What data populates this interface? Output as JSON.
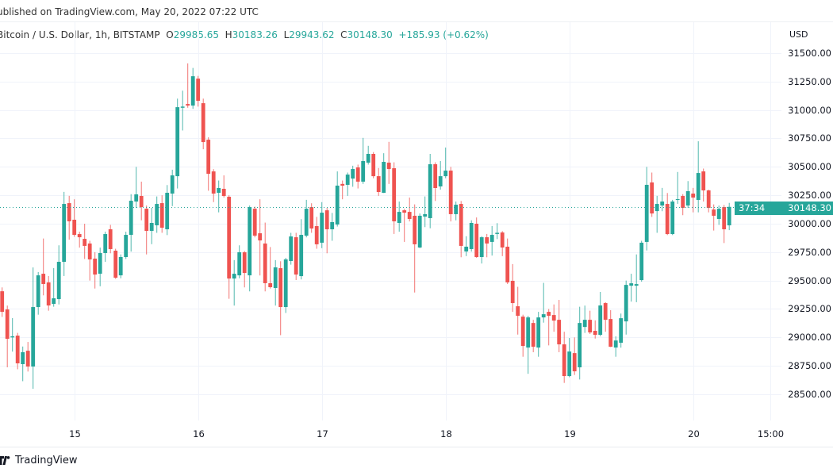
{
  "header": {
    "published": "ublished on TradingView.com, May 20, 2022 07:22 UTC",
    "symbol": "Bitcoin / U.S. Dollar, 1h, BITSTAMP",
    "o_label": "O",
    "o_value": "29985.65",
    "h_label": "H",
    "h_value": "30183.26",
    "l_label": "L",
    "l_value": "29943.62",
    "c_label": "C",
    "c_value": "30148.30",
    "change": "+185.93 (+0.62%)"
  },
  "footer": {
    "brand": "TradingView",
    "logo_icon": "tradingview-logo-icon"
  },
  "colors": {
    "up": "#26a69a",
    "down": "#ef5350",
    "grid": "#f0f3fa"
  },
  "chart_data": {
    "type": "candlestick",
    "title": "Bitcoin / U.S. Dollar, 1h, BITSTAMP",
    "currency_label": "USD",
    "ylim": [
      28300,
      31700
    ],
    "y_ticks": [
      "31500.00",
      "31250.00",
      "31000.00",
      "30750.00",
      "30500.00",
      "30250.00",
      "30000.00",
      "29750.00",
      "29500.00",
      "29250.00",
      "29000.00",
      "28750.00",
      "28500.00"
    ],
    "y_tick_values": [
      31500,
      31250,
      31000,
      30750,
      30500,
      30250,
      30000,
      29750,
      29500,
      29250,
      29000,
      28750,
      28500
    ],
    "x_ticks": [
      "15",
      "16",
      "17",
      "18",
      "19",
      "20",
      "15:00"
    ],
    "x_tick_hours": [
      14,
      38,
      62,
      86,
      110,
      134,
      149
    ],
    "last_price": "30148.30",
    "last_price_value": 30148.3,
    "countdown": "37:34",
    "ohlc": [
      [
        29406,
        29440,
        29180,
        29225
      ],
      [
        29246,
        29280,
        28737,
        28988
      ],
      [
        29000,
        29170,
        28875,
        29010
      ],
      [
        29016,
        29040,
        28720,
        28772
      ],
      [
        28765,
        28920,
        28615,
        28870
      ],
      [
        28883,
        28960,
        28700,
        28744
      ],
      [
        28744,
        29615,
        28548,
        29267
      ],
      [
        29267,
        29575,
        29200,
        29546
      ],
      [
        29560,
        29870,
        29370,
        29470
      ],
      [
        29484,
        29540,
        29235,
        29281
      ],
      [
        29295,
        29610,
        29270,
        29344
      ],
      [
        29337,
        29810,
        29290,
        29665
      ],
      [
        29665,
        30280,
        29540,
        30174
      ],
      [
        30181,
        30245,
        29860,
        30021
      ],
      [
        30035,
        30215,
        29885,
        29902
      ],
      [
        29909,
        29930,
        29790,
        29881
      ],
      [
        29867,
        30000,
        29690,
        29805
      ],
      [
        29826,
        29850,
        29500,
        29686
      ],
      [
        29693,
        29750,
        29430,
        29553
      ],
      [
        29560,
        29790,
        29450,
        29742
      ],
      [
        29742,
        29930,
        29665,
        29909
      ],
      [
        29951,
        29990,
        29740,
        29777
      ],
      [
        29763,
        29780,
        29515,
        29525
      ],
      [
        29546,
        29730,
        29520,
        29707
      ],
      [
        29707,
        29930,
        29690,
        29902
      ],
      [
        29902,
        30260,
        29755,
        30202
      ],
      [
        30195,
        30500,
        30140,
        30258
      ],
      [
        30244,
        30370,
        30030,
        30146
      ],
      [
        30132,
        30160,
        29730,
        29937
      ],
      [
        29937,
        30140,
        29820,
        30007
      ],
      [
        29986,
        30240,
        29920,
        30174
      ],
      [
        30181,
        30250,
        29920,
        29965
      ],
      [
        29951,
        30340,
        29900,
        30272
      ],
      [
        30265,
        30475,
        30155,
        30425
      ],
      [
        30418,
        31100,
        30310,
        31025
      ],
      [
        31020,
        31170,
        30820,
        31030
      ],
      [
        31053,
        31410,
        31020,
        31039
      ],
      [
        31039,
        31370,
        31010,
        31297
      ],
      [
        31276,
        31300,
        31030,
        31081
      ],
      [
        31060,
        31100,
        30655,
        30718
      ],
      [
        30739,
        30760,
        30290,
        30439
      ],
      [
        30460,
        30480,
        30190,
        30265
      ],
      [
        30272,
        30380,
        30100,
        30314
      ],
      [
        30307,
        30425,
        30230,
        30244
      ],
      [
        30237,
        30250,
        29340,
        29518
      ],
      [
        29518,
        29680,
        29280,
        29560
      ],
      [
        29546,
        29810,
        29520,
        29749
      ],
      [
        29749,
        29760,
        29440,
        29567
      ],
      [
        29546,
        30160,
        29405,
        30146
      ],
      [
        30132,
        30150,
        29880,
        29895
      ],
      [
        29916,
        30215,
        29545,
        29853
      ],
      [
        29826,
        30010,
        29405,
        29477
      ],
      [
        29477,
        29795,
        29430,
        29442
      ],
      [
        29435,
        29680,
        29280,
        29616
      ],
      [
        29609,
        29670,
        29020,
        29267
      ],
      [
        29267,
        29700,
        29215,
        29686
      ],
      [
        29672,
        29920,
        29640,
        29888
      ],
      [
        29881,
        29920,
        29505,
        29553
      ],
      [
        29539,
        30040,
        29510,
        29902
      ],
      [
        29895,
        30210,
        29880,
        30132
      ],
      [
        30146,
        30180,
        29920,
        29958
      ],
      [
        29979,
        30060,
        29780,
        29819
      ],
      [
        29833,
        30190,
        29785,
        30097
      ],
      [
        30118,
        30140,
        29740,
        29951
      ],
      [
        29951,
        30095,
        29850,
        30014
      ],
      [
        29993,
        30460,
        29975,
        30335
      ],
      [
        30350,
        30380,
        30215,
        30335
      ],
      [
        30342,
        30450,
        30245,
        30432
      ],
      [
        30397,
        30510,
        30325,
        30481
      ],
      [
        30495,
        30520,
        30310,
        30370
      ],
      [
        30370,
        30755,
        30350,
        30551
      ],
      [
        30537,
        30685,
        30520,
        30614
      ],
      [
        30614,
        30630,
        30400,
        30418
      ],
      [
        30418,
        30490,
        30245,
        30279
      ],
      [
        30272,
        30620,
        30270,
        30544
      ],
      [
        30537,
        30720,
        30350,
        30481
      ],
      [
        30488,
        30540,
        29910,
        30021
      ],
      [
        30007,
        30195,
        29930,
        30104
      ],
      [
        30118,
        30130,
        29840,
        30097
      ],
      [
        30104,
        30230,
        30020,
        30042
      ],
      [
        30070,
        30170,
        29395,
        29819
      ],
      [
        29791,
        30090,
        29785,
        30070
      ],
      [
        30063,
        30240,
        29970,
        30084
      ],
      [
        30049,
        30614,
        29960,
        30523
      ],
      [
        30523,
        30540,
        30200,
        30314
      ],
      [
        30328,
        30551,
        30300,
        30418
      ],
      [
        30418,
        30670,
        30400,
        30467
      ],
      [
        30467,
        30500,
        30020,
        30084
      ],
      [
        30084,
        30195,
        30030,
        30167
      ],
      [
        30174,
        30200,
        29705,
        29805
      ],
      [
        29756,
        29890,
        29715,
        29798
      ],
      [
        29777,
        30030,
        29755,
        30007
      ],
      [
        30000,
        30055,
        29700,
        29707
      ],
      [
        29707,
        29890,
        29650,
        29881
      ],
      [
        29881,
        29910,
        29705,
        29826
      ],
      [
        29840,
        29980,
        29720,
        29902
      ],
      [
        29910,
        30005,
        29865,
        29920
      ],
      [
        29923,
        29935,
        29715,
        29791
      ],
      [
        29798,
        29870,
        29470,
        29484
      ],
      [
        29498,
        29645,
        29225,
        29302
      ],
      [
        29274,
        29445,
        29025,
        29190
      ],
      [
        29183,
        29200,
        28830,
        28925
      ],
      [
        28911,
        29190,
        28680,
        29176
      ],
      [
        29127,
        29155,
        28870,
        28918
      ],
      [
        28911,
        29225,
        28830,
        29176
      ],
      [
        29176,
        29480,
        29130,
        29204
      ],
      [
        29225,
        29250,
        28930,
        29190
      ],
      [
        29197,
        29290,
        29050,
        29148
      ],
      [
        29155,
        29330,
        28870,
        28939
      ],
      [
        28939,
        29050,
        28600,
        28660
      ],
      [
        28660,
        28995,
        28650,
        28876
      ],
      [
        28862,
        29000,
        28670,
        28702
      ],
      [
        28737,
        29270,
        28630,
        29127
      ],
      [
        29092,
        29280,
        29040,
        29155
      ],
      [
        29155,
        29235,
        29030,
        29044
      ],
      [
        29058,
        29150,
        28990,
        29023
      ],
      [
        29023,
        29400,
        29010,
        29281
      ],
      [
        29302,
        29310,
        29050,
        29155
      ],
      [
        29162,
        29240,
        28915,
        28918
      ],
      [
        28911,
        29010,
        28830,
        28973
      ],
      [
        28953,
        29210,
        28910,
        29169
      ],
      [
        29141,
        29500,
        29025,
        29462
      ],
      [
        29455,
        29560,
        29315,
        29476
      ],
      [
        29455,
        29730,
        29310,
        29469
      ],
      [
        29504,
        29850,
        29490,
        29833
      ],
      [
        29840,
        30500,
        29765,
        30342
      ],
      [
        30363,
        30450,
        30060,
        30090
      ],
      [
        30111,
        30245,
        29920,
        30174
      ],
      [
        30160,
        30315,
        30110,
        30195
      ],
      [
        30174,
        30270,
        29900,
        29909
      ],
      [
        29909,
        30210,
        29900,
        30195
      ],
      [
        30209,
        30455,
        30175,
        30216
      ],
      [
        30244,
        30260,
        30075,
        30139
      ],
      [
        30160,
        30375,
        30140,
        30286
      ],
      [
        30265,
        30315,
        30100,
        30230
      ],
      [
        30209,
        30725,
        30100,
        30446
      ],
      [
        30460,
        30485,
        30195,
        30293
      ],
      [
        30293,
        30300,
        30100,
        30139
      ],
      [
        30125,
        30170,
        29940,
        30070
      ],
      [
        30042,
        30160,
        29990,
        30132
      ],
      [
        30146,
        30165,
        29830,
        29951
      ],
      [
        29985.65,
        30183.26,
        29943.62,
        30148.3
      ]
    ]
  }
}
